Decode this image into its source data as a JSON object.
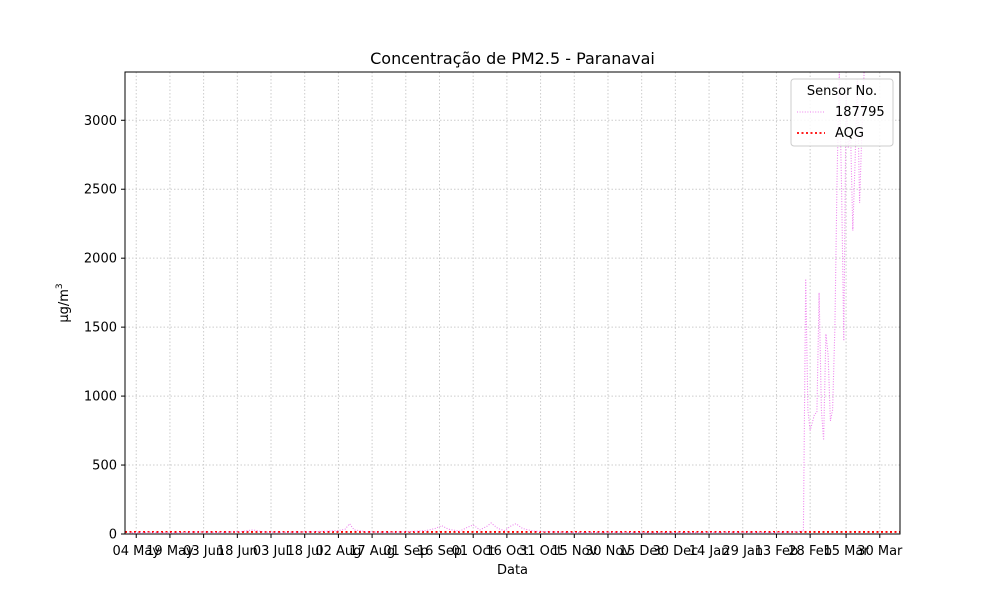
{
  "chart_data": {
    "type": "line",
    "title": "Concentração de PM2.5 - Paranavai",
    "xlabel": "Data",
    "ylabel_base": "µg/m",
    "ylabel_sup": "3",
    "xlim": [
      "2023-04-29",
      "2024-04-08"
    ],
    "ylim": [
      0,
      3350
    ],
    "yticks": [
      0,
      500,
      1000,
      1500,
      2000,
      2500,
      3000
    ],
    "xticks": [
      {
        "date": "2023-05-04",
        "label": "04 May"
      },
      {
        "date": "2023-05-19",
        "label": "19 May"
      },
      {
        "date": "2023-06-03",
        "label": "03 Jun"
      },
      {
        "date": "2023-06-18",
        "label": "18 Jun"
      },
      {
        "date": "2023-07-03",
        "label": "03 Jul"
      },
      {
        "date": "2023-07-18",
        "label": "18 Jul"
      },
      {
        "date": "2023-08-02",
        "label": "02 Aug"
      },
      {
        "date": "2023-08-17",
        "label": "17 Aug"
      },
      {
        "date": "2023-09-01",
        "label": "01 Sep"
      },
      {
        "date": "2023-09-16",
        "label": "16 Sep"
      },
      {
        "date": "2023-10-01",
        "label": "01 Oct"
      },
      {
        "date": "2023-10-16",
        "label": "16 Oct"
      },
      {
        "date": "2023-10-31",
        "label": "31 Oct"
      },
      {
        "date": "2023-11-15",
        "label": "15 Nov"
      },
      {
        "date": "2023-11-30",
        "label": "30 Nov"
      },
      {
        "date": "2023-12-15",
        "label": "15 Dec"
      },
      {
        "date": "2023-12-30",
        "label": "30 Dec"
      },
      {
        "date": "2024-01-14",
        "label": "14 Jan"
      },
      {
        "date": "2024-01-29",
        "label": "29 Jan"
      },
      {
        "date": "2024-02-13",
        "label": "13 Feb"
      },
      {
        "date": "2024-02-28",
        "label": "28 Feb"
      },
      {
        "date": "2024-03-15",
        "label": "15 Mar"
      },
      {
        "date": "2024-03-30",
        "label": "30 Mar"
      }
    ],
    "grid": true,
    "legend": {
      "title": "Sensor No.",
      "placement": "top-right",
      "entries": [
        {
          "label": "187795",
          "color": "#ee82ee",
          "style": "dotted"
        },
        {
          "label": "AQG",
          "color": "#ff0000",
          "style": "dotted"
        }
      ]
    },
    "reference_line": {
      "name": "AQG",
      "y": 15,
      "color": "#ff0000"
    },
    "series": [
      {
        "name": "187795",
        "color": "#ee82ee",
        "points": [
          [
            "2023-05-01",
            8
          ],
          [
            "2023-05-10",
            12
          ],
          [
            "2023-05-20",
            9
          ],
          [
            "2023-06-01",
            15
          ],
          [
            "2023-06-10",
            11
          ],
          [
            "2023-06-20",
            18
          ],
          [
            "2023-06-25",
            30
          ],
          [
            "2023-06-30",
            14
          ],
          [
            "2023-07-10",
            12
          ],
          [
            "2023-07-20",
            16
          ],
          [
            "2023-07-28",
            20
          ],
          [
            "2023-08-02",
            25
          ],
          [
            "2023-08-05",
            35
          ],
          [
            "2023-08-07",
            75
          ],
          [
            "2023-08-09",
            30
          ],
          [
            "2023-08-15",
            15
          ],
          [
            "2023-08-25",
            12
          ],
          [
            "2023-09-03",
            18
          ],
          [
            "2023-09-10",
            25
          ],
          [
            "2023-09-14",
            40
          ],
          [
            "2023-09-17",
            60
          ],
          [
            "2023-09-20",
            35
          ],
          [
            "2023-09-25",
            20
          ],
          [
            "2023-09-28",
            45
          ],
          [
            "2023-10-01",
            65
          ],
          [
            "2023-10-04",
            30
          ],
          [
            "2023-10-07",
            55
          ],
          [
            "2023-10-09",
            80
          ],
          [
            "2023-10-12",
            40
          ],
          [
            "2023-10-15",
            25
          ],
          [
            "2023-10-18",
            60
          ],
          [
            "2023-10-20",
            75
          ],
          [
            "2023-10-23",
            40
          ],
          [
            "2023-10-28",
            20
          ],
          [
            "2023-11-05",
            15
          ],
          [
            "2023-11-15",
            10
          ],
          [
            "2023-12-01",
            12
          ],
          [
            "2023-12-20",
            9
          ],
          [
            "2024-01-10",
            11
          ],
          [
            "2024-02-01",
            13
          ],
          [
            "2024-02-12",
            10
          ],
          [
            "2024-02-20",
            15
          ],
          [
            "2024-02-25",
            20
          ],
          [
            "2024-02-26",
            1850
          ],
          [
            "2024-02-27",
            900
          ],
          [
            "2024-02-28",
            750
          ],
          [
            "2024-03-01",
            870
          ],
          [
            "2024-03-02",
            880
          ],
          [
            "2024-03-03",
            1750
          ],
          [
            "2024-03-04",
            900
          ],
          [
            "2024-03-05",
            680
          ],
          [
            "2024-03-06",
            1450
          ],
          [
            "2024-03-07",
            1300
          ],
          [
            "2024-03-08",
            820
          ],
          [
            "2024-03-09",
            900
          ],
          [
            "2024-03-10",
            1500
          ],
          [
            "2024-03-11",
            2600
          ],
          [
            "2024-03-12",
            3350
          ],
          [
            "2024-03-13",
            2500
          ],
          [
            "2024-03-14",
            1400
          ],
          [
            "2024-03-15",
            3200
          ],
          [
            "2024-03-16",
            2800
          ],
          [
            "2024-03-17",
            2900
          ],
          [
            "2024-03-18",
            2200
          ],
          [
            "2024-03-19",
            2700
          ],
          [
            "2024-03-20",
            3300
          ],
          [
            "2024-03-21",
            2400
          ],
          [
            "2024-03-22",
            2900
          ],
          [
            "2024-03-23",
            3350
          ]
        ]
      }
    ]
  }
}
